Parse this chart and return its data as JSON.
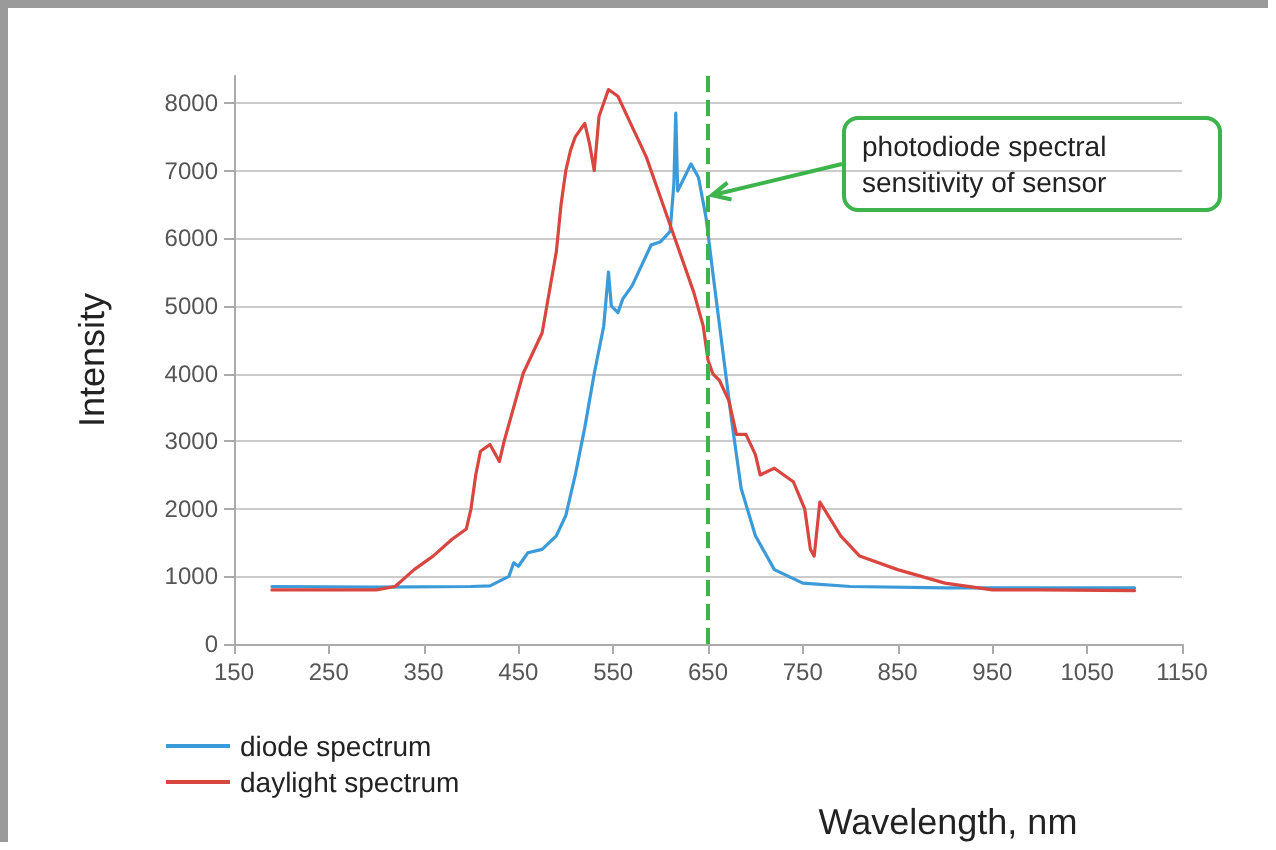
{
  "chart_data": {
    "type": "line",
    "xlabel": "Wavelength, nm",
    "ylabel": "Intensity",
    "xlim": [
      150,
      1150
    ],
    "xticks": [
      150,
      250,
      350,
      450,
      550,
      650,
      750,
      850,
      950,
      1050,
      1150
    ],
    "ylim": [
      0,
      8400
    ],
    "yticks": [
      0,
      1000,
      2000,
      3000,
      4000,
      5000,
      6000,
      7000,
      8000
    ],
    "grid": "y",
    "legend": "bottom left",
    "marker": "none",
    "line_style": "solid",
    "series": [
      {
        "name": "diode spectrum",
        "color": "#3b9ad8",
        "x": [
          190,
          300,
          400,
          420,
          440,
          445,
          450,
          460,
          475,
          490,
          500,
          510,
          520,
          530,
          540,
          545,
          548,
          555,
          560,
          570,
          580,
          590,
          600,
          610,
          614,
          616,
          618,
          625,
          632,
          640,
          648,
          655,
          665,
          675,
          685,
          700,
          720,
          750,
          800,
          900,
          1000,
          1100
        ],
        "values": [
          850,
          840,
          850,
          860,
          1000,
          1200,
          1150,
          1350,
          1400,
          1600,
          1900,
          2500,
          3200,
          4000,
          4700,
          5500,
          5000,
          4900,
          5100,
          5300,
          5600,
          5900,
          5950,
          6100,
          6800,
          7850,
          6700,
          6900,
          7100,
          6900,
          6300,
          5500,
          4400,
          3300,
          2300,
          1600,
          1100,
          900,
          850,
          830,
          830,
          830
        ]
      },
      {
        "name": "daylight spectrum",
        "color": "#d9453f",
        "x": [
          190,
          300,
          320,
          340,
          360,
          380,
          395,
          400,
          405,
          410,
          420,
          430,
          435,
          445,
          455,
          465,
          475,
          480,
          490,
          495,
          500,
          505,
          510,
          520,
          525,
          530,
          535,
          545,
          555,
          565,
          575,
          585,
          595,
          605,
          615,
          625,
          635,
          645,
          650,
          655,
          662,
          672,
          680,
          690,
          700,
          705,
          720,
          740,
          752,
          758,
          762,
          768,
          790,
          810,
          850,
          900,
          950,
          1000,
          1100
        ],
        "values": [
          800,
          800,
          850,
          1100,
          1300,
          1550,
          1700,
          2000,
          2500,
          2850,
          2950,
          2700,
          3000,
          3500,
          4000,
          4300,
          4600,
          5000,
          5800,
          6500,
          7000,
          7300,
          7500,
          7700,
          7400,
          7000,
          7800,
          8200,
          8100,
          7800,
          7500,
          7200,
          6800,
          6400,
          6000,
          5600,
          5200,
          4700,
          4200,
          4000,
          3900,
          3600,
          3100,
          3100,
          2800,
          2500,
          2600,
          2400,
          2000,
          1400,
          1300,
          2100,
          1600,
          1300,
          1100,
          900,
          800,
          800,
          790
        ]
      }
    ],
    "ref_lines": [
      {
        "axis": "x",
        "value": 650,
        "label": "photodiode spectral sensitivity of sensor",
        "color": "#3cb44b",
        "line_style": "dashed"
      }
    ]
  }
}
